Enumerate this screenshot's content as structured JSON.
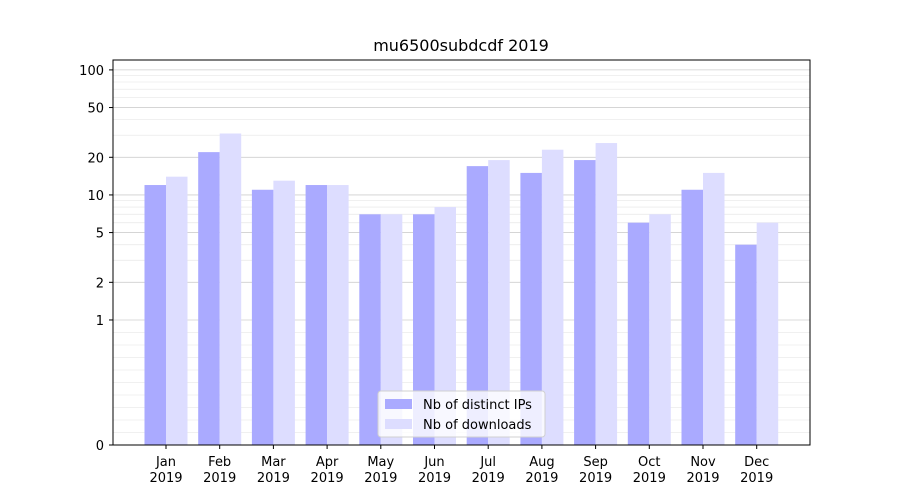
{
  "chart_data": {
    "type": "bar",
    "title": "mu6500subdcdf 2019",
    "xlabel": "",
    "ylabel": "",
    "yscale": "symlog",
    "ylim": [
      0,
      120
    ],
    "yticks": [
      0,
      1,
      2,
      5,
      10,
      20,
      50,
      100
    ],
    "ytick_labels": [
      "0",
      "1",
      "2",
      "5",
      "10",
      "20",
      "50",
      "100"
    ],
    "grid": true,
    "legend_position": "bottom-center",
    "categories": [
      [
        "Jan",
        "2019"
      ],
      [
        "Feb",
        "2019"
      ],
      [
        "Mar",
        "2019"
      ],
      [
        "Apr",
        "2019"
      ],
      [
        "May",
        "2019"
      ],
      [
        "Jun",
        "2019"
      ],
      [
        "Jul",
        "2019"
      ],
      [
        "Aug",
        "2019"
      ],
      [
        "Sep",
        "2019"
      ],
      [
        "Oct",
        "2019"
      ],
      [
        "Nov",
        "2019"
      ],
      [
        "Dec",
        "2019"
      ]
    ],
    "series": [
      {
        "name": "Nb of distinct IPs",
        "color": "#aaaaff",
        "values": [
          12,
          22,
          11,
          12,
          7,
          7,
          17,
          15,
          19,
          6,
          11,
          4
        ]
      },
      {
        "name": "Nb of downloads",
        "color": "#ddddff",
        "values": [
          14,
          31,
          13,
          12,
          7,
          8,
          19,
          23,
          26,
          7,
          15,
          6
        ]
      }
    ]
  }
}
